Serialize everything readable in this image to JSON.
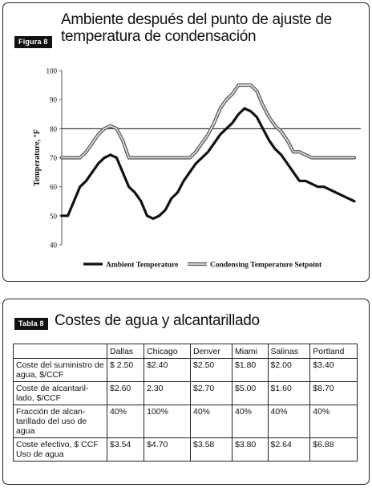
{
  "figure": {
    "tag": "Figura 8",
    "title": "Ambiente después del punto de ajuste de temperatura de condensación"
  },
  "chart_data": {
    "type": "line",
    "ylabel": "Temperature, °F",
    "xlabel": "",
    "ylim": [
      40,
      100
    ],
    "yticks": [
      "100",
      "90",
      "80",
      "70",
      "60",
      "50",
      "40"
    ],
    "ytick_values": [
      100,
      90,
      80,
      70,
      60,
      50,
      40
    ],
    "reference_line": 80,
    "legend_position": "bottom",
    "x": [
      0,
      1,
      2,
      3,
      4,
      5,
      6,
      7,
      8,
      9,
      10,
      11,
      12,
      13,
      14,
      15,
      16,
      17,
      18,
      19,
      20,
      21,
      22,
      23,
      24,
      25,
      26,
      27,
      28,
      29,
      30,
      31,
      32,
      33,
      34,
      35,
      36,
      37,
      38,
      39,
      40,
      41,
      42,
      43,
      44,
      45,
      46,
      47,
      48
    ],
    "series": [
      {
        "name": "Ambient Temperature",
        "color": "#111111",
        "values": [
          50,
          50,
          55,
          60,
          62,
          65,
          68,
          70,
          71,
          70,
          65,
          60,
          58,
          55,
          50,
          49,
          50,
          52,
          56,
          58,
          62,
          65,
          68,
          70,
          72,
          75,
          78,
          80,
          82,
          85,
          87,
          86,
          84,
          80,
          76,
          73,
          71,
          68,
          65,
          62,
          62,
          61,
          60,
          60,
          59,
          58,
          57,
          56,
          55
        ]
      },
      {
        "name": "Condensing Temperature Setpoint",
        "color": "#888888",
        "values": [
          70,
          70,
          70,
          70,
          72,
          75,
          78,
          80,
          81,
          80,
          76,
          70,
          70,
          70,
          70,
          70,
          70,
          70,
          70,
          70,
          70,
          70,
          72,
          75,
          78,
          82,
          87,
          90,
          92,
          95,
          95,
          95,
          93,
          88,
          84,
          81,
          79,
          76,
          72,
          72,
          71,
          70,
          70,
          70,
          70,
          70,
          70,
          70,
          70
        ]
      }
    ]
  },
  "table": {
    "tag": "Tabla 8",
    "title": "Costes de agua y alcantarillado",
    "columns": [
      "",
      "Dallas",
      "Chicago",
      "Denver",
      "Miami",
      "Salinas",
      "Portland"
    ],
    "rows": [
      {
        "label": "Coste del suministro de agua, $/CCF",
        "cells": [
          "$ 2.50",
          "$2.40",
          "$2.50",
          "$1.80",
          "$2.00",
          "$3.40"
        ]
      },
      {
        "label": "Coste de alcantaril-lado, $/CCF",
        "cells": [
          "$2.60",
          "2.30",
          "$2.70",
          "$5.00",
          "$1.60",
          "$8.70"
        ]
      },
      {
        "label": "Fracción de alcan-tarillado del uso de agua",
        "cells": [
          "40%",
          "100%",
          "40%",
          "40%",
          "40%",
          "40%"
        ]
      },
      {
        "label": "Coste efectivo, $ CCF Uso de agua",
        "cells": [
          "$3.54",
          "$4.70",
          "$3.58",
          "$3.80",
          "$2.64",
          "$6.88"
        ]
      }
    ]
  }
}
